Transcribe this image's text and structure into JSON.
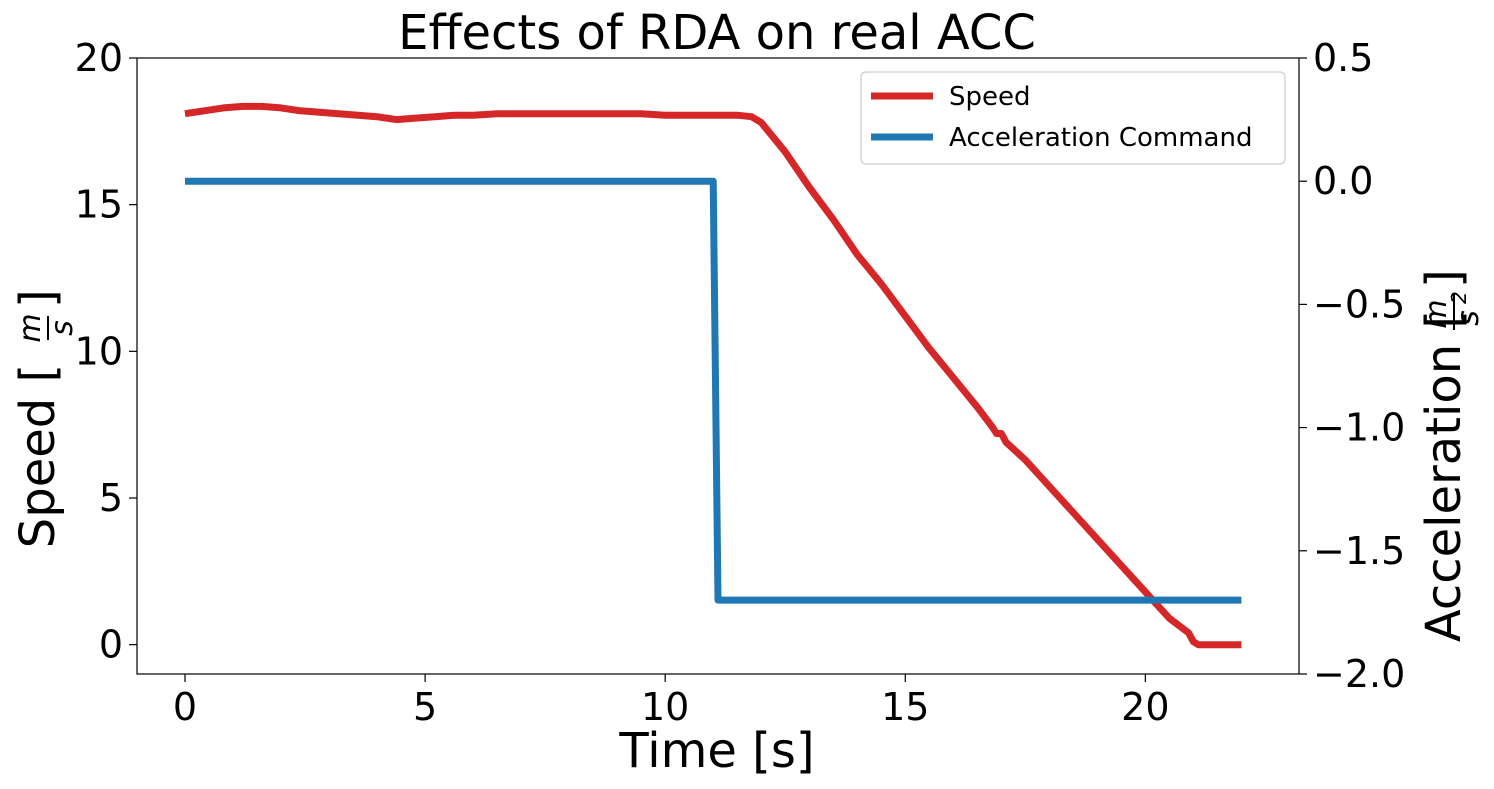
{
  "chart_data": {
    "type": "line",
    "title": "Effects of RDA on real ACC",
    "xlabel": "Time [s]",
    "ylabel_left": {
      "text": "Speed [",
      "numerator": "m",
      "denominator": "s",
      "close": "]"
    },
    "ylabel_right": {
      "text": "Acceleration [",
      "numerator": "m",
      "denominator": "s",
      "exponent": "2",
      "close": "]"
    },
    "xlim": [
      -1.0,
      23.2
    ],
    "ylim_left": [
      -1.0,
      20.0
    ],
    "ylim_right": [
      -2.0,
      0.5
    ],
    "xticks": [
      0,
      5,
      10,
      15,
      20
    ],
    "xtick_labels": [
      "0",
      "5",
      "10",
      "15",
      "20"
    ],
    "yticks_left": [
      0,
      5,
      10,
      15,
      20
    ],
    "ytick_labels_left": [
      "0",
      "5",
      "10",
      "15",
      "20"
    ],
    "yticks_right": [
      -2.0,
      -1.5,
      -1.0,
      -0.5,
      0.0,
      0.5
    ],
    "ytick_labels_right": [
      "−2.0",
      "−1.5",
      "−1.0",
      "−0.5",
      "0.0",
      "0.5"
    ],
    "grid": false,
    "legend_position": "top-right",
    "series": [
      {
        "name": "Speed",
        "axis": "left",
        "color": "#d62728",
        "x": [
          0.0,
          0.4,
          0.8,
          1.2,
          1.6,
          2.0,
          2.4,
          2.8,
          3.2,
          3.6,
          4.0,
          4.4,
          4.8,
          5.2,
          5.6,
          6.0,
          6.5,
          7.0,
          7.5,
          8.0,
          8.5,
          9.0,
          9.5,
          10.0,
          10.5,
          11.0,
          11.5,
          11.8,
          12.0,
          12.5,
          13.0,
          13.5,
          14.0,
          14.5,
          15.0,
          15.5,
          16.0,
          16.5,
          16.8,
          16.9,
          17.0,
          17.1,
          17.5,
          18.0,
          18.5,
          19.0,
          19.5,
          20.0,
          20.5,
          20.9,
          21.0,
          21.1,
          21.5,
          22.0
        ],
        "y": [
          18.1,
          18.2,
          18.3,
          18.35,
          18.35,
          18.3,
          18.2,
          18.15,
          18.1,
          18.05,
          18.0,
          17.9,
          17.95,
          18.0,
          18.05,
          18.05,
          18.1,
          18.1,
          18.1,
          18.1,
          18.1,
          18.1,
          18.1,
          18.05,
          18.05,
          18.05,
          18.05,
          18.0,
          17.8,
          16.8,
          15.6,
          14.5,
          13.3,
          12.3,
          11.2,
          10.1,
          9.1,
          8.1,
          7.45,
          7.2,
          7.2,
          6.9,
          6.3,
          5.4,
          4.5,
          3.6,
          2.7,
          1.8,
          0.9,
          0.4,
          0.1,
          0.0,
          0.0,
          0.0
        ]
      },
      {
        "name": "Acceleration Command",
        "axis": "right",
        "color": "#1f77b4",
        "x": [
          0.0,
          11.0,
          11.1,
          22.0
        ],
        "y": [
          0.0,
          0.0,
          -1.7,
          -1.7
        ]
      }
    ]
  }
}
